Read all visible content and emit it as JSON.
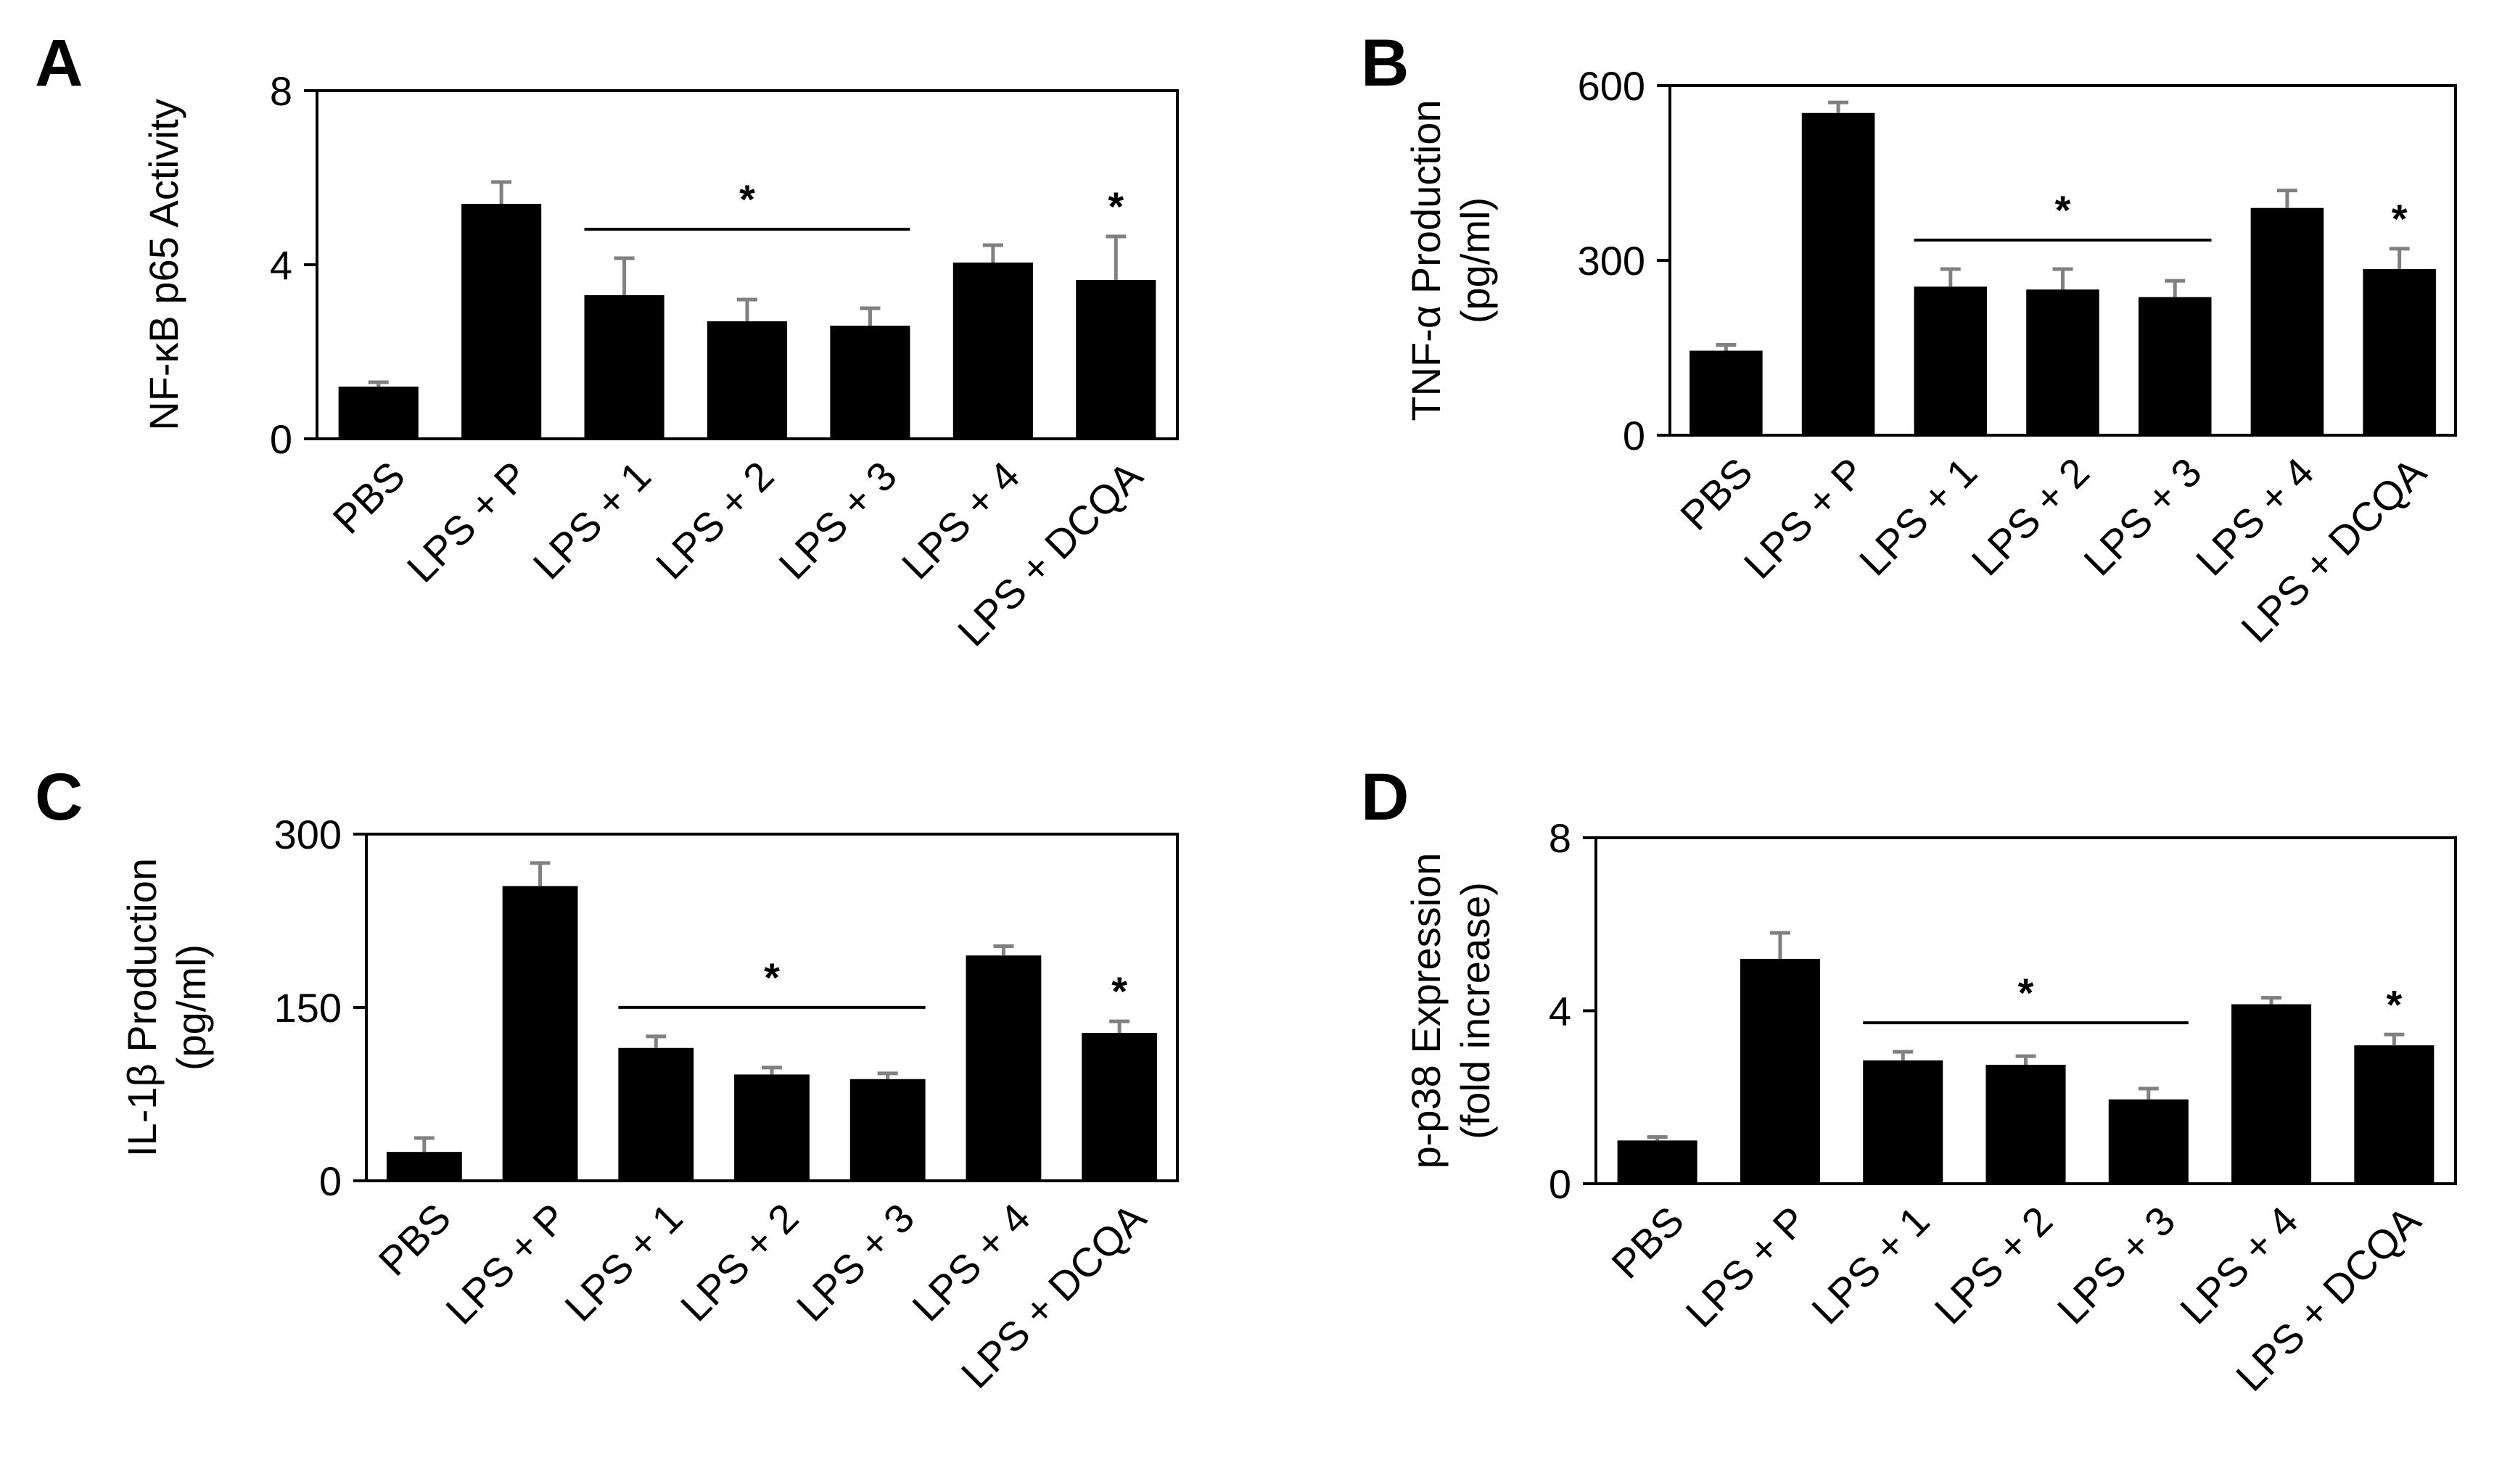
{
  "chart_data": [
    {
      "type": "bar",
      "panel": "A",
      "ylabel": [
        "NF-κB p65 Activity"
      ],
      "categories": [
        "PBS",
        "LPS + P",
        "LPS + 1",
        "LPS + 2",
        "LPS + 3",
        "LPS + 4",
        "LPS + DCQA"
      ],
      "values": [
        1.2,
        5.4,
        3.3,
        2.7,
        2.6,
        4.05,
        3.65
      ],
      "errors": [
        0.1,
        0.5,
        0.85,
        0.5,
        0.4,
        0.4,
        1.0
      ],
      "ylim": [
        0,
        8
      ],
      "yticks": [
        0,
        4,
        8
      ],
      "significance": {
        "bracket_from": 2,
        "bracket_to": 4,
        "star_on": [
          6
        ],
        "symbol": "*"
      }
    },
    {
      "type": "bar",
      "panel": "B",
      "ylabel": [
        "TNF-α Production",
        "(pg/ml)"
      ],
      "categories": [
        "PBS",
        "LPS + P",
        "LPS + 1",
        "LPS + 2",
        "LPS + 3",
        "LPS + 4",
        "LPS + DCQA"
      ],
      "values": [
        145,
        553,
        255,
        250,
        237,
        390,
        285
      ],
      "errors": [
        10,
        18,
        30,
        35,
        28,
        30,
        35
      ],
      "ylim": [
        0,
        600
      ],
      "yticks": [
        0,
        300,
        600
      ],
      "significance": {
        "bracket_from": 2,
        "bracket_to": 4,
        "star_on": [
          6
        ],
        "symbol": "*"
      }
    },
    {
      "type": "bar",
      "panel": "C",
      "ylabel": [
        "IL-1β Production",
        "(pg/ml)"
      ],
      "categories": [
        "PBS",
        "LPS + P",
        "LPS + 1",
        "LPS + 2",
        "LPS + 3",
        "LPS + 4",
        "LPS + DCQA"
      ],
      "values": [
        25,
        255,
        115,
        92,
        88,
        195,
        128
      ],
      "errors": [
        12,
        20,
        10,
        6,
        5,
        8,
        10
      ],
      "ylim": [
        0,
        300
      ],
      "yticks": [
        0,
        150,
        300
      ],
      "significance": {
        "bracket_from": 2,
        "bracket_to": 4,
        "star_on": [
          6
        ],
        "symbol": "*"
      }
    },
    {
      "type": "bar",
      "panel": "D",
      "ylabel": [
        "p-p38 Expression",
        "(fold increase)"
      ],
      "categories": [
        "PBS",
        "LPS + P",
        "LPS + 1",
        "LPS + 2",
        "LPS + 3",
        "LPS + 4",
        "LPS + DCQA"
      ],
      "values": [
        1.0,
        5.2,
        2.85,
        2.75,
        1.95,
        4.15,
        3.2
      ],
      "errors": [
        0.08,
        0.6,
        0.2,
        0.2,
        0.25,
        0.15,
        0.25
      ],
      "ylim": [
        0,
        8
      ],
      "yticks": [
        0,
        4,
        8
      ],
      "significance": {
        "bracket_from": 2,
        "bracket_to": 4,
        "star_on": [
          6
        ],
        "symbol": "*"
      }
    }
  ],
  "colors": {
    "bar": "#000000",
    "error_bar": "#808080",
    "axis": "#000000"
  }
}
